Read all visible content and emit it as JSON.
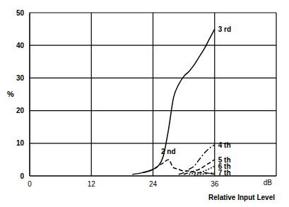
{
  "chart_data": {
    "type": "line",
    "x_label": "Relative Input Level",
    "x_unit": "dB",
    "y_label": "%",
    "x": [
      20,
      22,
      24,
      25,
      26,
      27,
      28,
      29,
      30,
      31,
      32,
      33,
      34,
      35,
      36
    ],
    "series": [
      {
        "name": "3 rd",
        "color": "#000000",
        "line_style": "solid",
        "values": [
          0.5,
          1,
          2,
          3,
          6,
          14,
          24,
          28,
          30.5,
          32,
          34,
          36.5,
          39,
          42,
          45
        ]
      },
      {
        "name": "2 nd",
        "color": "#000000",
        "line_style": "dashed",
        "values": [
          null,
          1,
          2,
          3,
          4,
          5,
          2.5,
          2,
          1.5,
          1.5,
          1.2,
          1,
          1,
          0.8,
          0.5
        ]
      },
      {
        "name": "4 th",
        "color": "#000000",
        "line_style": "dashdot",
        "values": [
          null,
          null,
          null,
          null,
          null,
          null,
          null,
          0.5,
          1,
          2,
          3,
          5,
          7,
          8.5,
          9.5
        ]
      },
      {
        "name": "5 th",
        "color": "#000000",
        "line_style": "dashed",
        "values": [
          null,
          null,
          null,
          null,
          null,
          null,
          null,
          null,
          0.5,
          1,
          1.5,
          2,
          3,
          4,
          5
        ]
      },
      {
        "name": "6 th",
        "color": "#000000",
        "line_style": "dotted",
        "values": [
          null,
          null,
          null,
          null,
          null,
          null,
          null,
          null,
          null,
          0.5,
          0.8,
          1,
          1.5,
          2.2,
          3
        ]
      },
      {
        "name": "7 th",
        "color": "#000000",
        "line_style": "dotted",
        "values": [
          null,
          null,
          null,
          null,
          null,
          null,
          null,
          null,
          null,
          null,
          0.3,
          0.5,
          0.6,
          0.8,
          1
        ]
      }
    ],
    "xlim": [
      0,
      48
    ],
    "xticks": [
      0,
      12,
      24,
      36
    ],
    "ylim": [
      0,
      50
    ],
    "yticks": [
      0,
      10,
      20,
      30,
      40,
      50
    ],
    "grid": true
  }
}
